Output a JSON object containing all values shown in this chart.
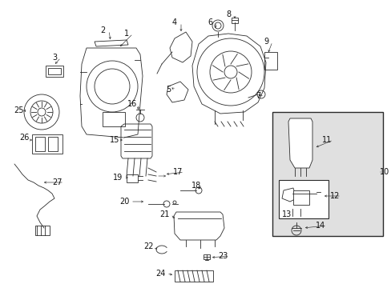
{
  "bg_color": "#ffffff",
  "light_gray": "#e0e0e0",
  "line_color": "#2a2a2a",
  "label_color": "#111111",
  "figsize": [
    4.89,
    3.6
  ],
  "dpi": 100,
  "lw": 0.6,
  "fontsize": 7.0
}
